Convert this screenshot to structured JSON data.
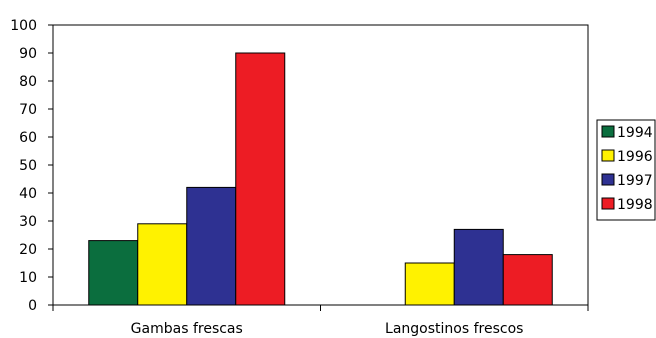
{
  "chart_data": {
    "type": "bar",
    "categories": [
      "Gambas frescas",
      "Langostinos frescos"
    ],
    "series": [
      {
        "name": "1994",
        "values": [
          23,
          0
        ],
        "color": "#0b6e3e"
      },
      {
        "name": "1996",
        "values": [
          29,
          15
        ],
        "color": "#fff200"
      },
      {
        "name": "1997",
        "values": [
          42,
          27
        ],
        "color": "#2e3192"
      },
      {
        "name": "1998",
        "values": [
          90,
          18
        ],
        "color": "#ed1c24"
      }
    ],
    "ylim": [
      0,
      100
    ],
    "yticks": [
      0,
      10,
      20,
      30,
      40,
      50,
      60,
      70,
      80,
      90,
      100
    ],
    "legend": "right",
    "grid": false
  }
}
